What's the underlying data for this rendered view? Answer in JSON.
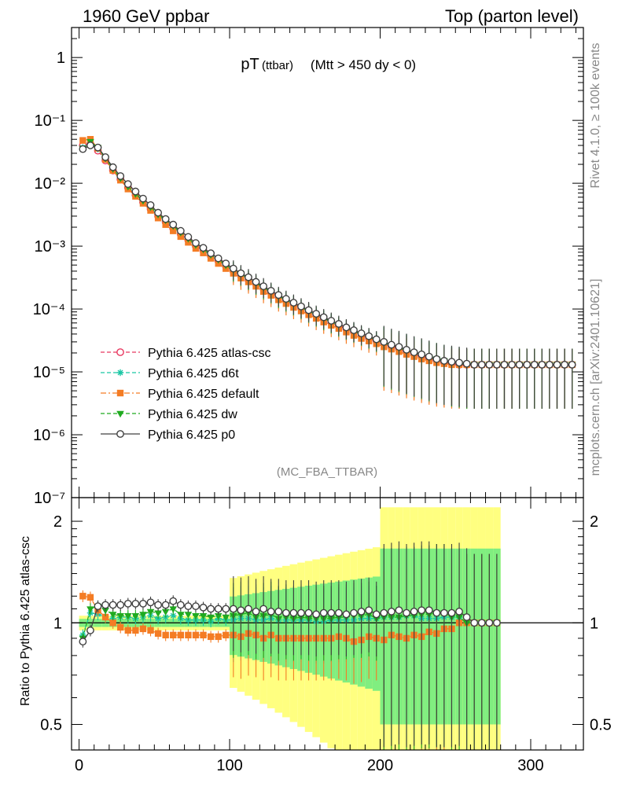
{
  "header": {
    "left_title": "1960 GeV ppbar",
    "right_title": "Top (parton level)"
  },
  "side_labels": {
    "rivet": "Rivet 4.1.0, ≥ 100k events",
    "mcplots": "mcplots.cern.ch [arXiv:2401.10621]"
  },
  "plot_title": {
    "main": "pT",
    "sub": "(ttbar)",
    "cut": "(Mtt > 450 dy < 0)"
  },
  "analysis_tag": "(MC_FBA_TTBAR)",
  "colors": {
    "atlas_csc": "#e8375f",
    "d6t": "#19c6a4",
    "default": "#f47c24",
    "dw": "#1faa1f",
    "p0": "#404040",
    "band_yellow": "#ffff80",
    "band_green": "#80ee80"
  },
  "chart_data": [
    {
      "type": "line",
      "panel": "main",
      "xlabel": "",
      "ylabel": "",
      "xlim": [
        -5,
        335
      ],
      "ylim": [
        1e-07,
        3
      ],
      "yscale": "log",
      "ytick_labels": [
        "10⁻⁷",
        "10⁻⁶",
        "10⁻⁵",
        "10⁻⁴",
        "10⁻³",
        "10⁻²",
        "10⁻¹",
        "1"
      ],
      "legend_position": "middle-left",
      "x": [
        2.5,
        7.5,
        12.5,
        17.5,
        22.5,
        27.5,
        32.5,
        37.5,
        42.5,
        47.5,
        52.5,
        57.5,
        62.5,
        67.5,
        72.5,
        77.5,
        82.5,
        87.5,
        92.5,
        97.5,
        102.5,
        107.5,
        112.5,
        117.5,
        122.5,
        127.5,
        132.5,
        137.5,
        142.5,
        147.5,
        152.5,
        157.5,
        162.5,
        167.5,
        172.5,
        177.5,
        182.5,
        187.5,
        192.5,
        197.5,
        202.5,
        207.5,
        212.5,
        217.5,
        222.5,
        227.5,
        232.5,
        237.5,
        242.5,
        247.5,
        252.5,
        257.5,
        262.5,
        267.5,
        272.5,
        277.5,
        282.5,
        287.5,
        292.5,
        297.5,
        302.5,
        307.5,
        312.5,
        317.5,
        322.5,
        327.5
      ],
      "series": [
        {
          "name": "Pythia 6.425 atlas-csc",
          "key": "atlas_csc",
          "style": "dashed",
          "marker": "open-circle",
          "values": [
            0.04,
            0.042,
            0.033,
            0.023,
            0.016,
            0.0115,
            0.0085,
            0.0065,
            0.005,
            0.0039,
            0.003,
            0.0024,
            0.0019,
            0.00155,
            0.00125,
            0.001,
            0.00085,
            0.0007,
            0.00058,
            0.00048,
            0.0004,
            0.00034,
            0.00029,
            0.00025,
            0.00021,
            0.00018,
            0.000155,
            0.000135,
            0.000118,
            0.000103,
            9e-05,
            7.9e-05,
            6.9e-05,
            6.1e-05,
            5.4e-05,
            4.8e-05,
            4.3e-05,
            3.8e-05,
            3.4e-05,
            3.1e-05,
            2.8e-05,
            2.5e-05,
            2.3e-05,
            2.1e-05,
            1.9e-05,
            1.75e-05,
            1.6e-05,
            1.5e-05,
            1.4e-05,
            1.35e-05,
            1.3e-05,
            1.3e-05,
            1.3e-05,
            1.3e-05,
            1.3e-05,
            1.3e-05,
            1.3e-05,
            1.3e-05,
            1.3e-05,
            1.3e-05,
            1.3e-05,
            1.3e-05,
            1.3e-05,
            1.3e-05,
            1.3e-05,
            1.3e-05
          ]
        },
        {
          "name": "Pythia 6.425 d6t",
          "key": "d6t",
          "style": "dashed",
          "marker": "star",
          "values": [
            0.037,
            0.045,
            0.035,
            0.024,
            0.0165,
            0.012,
            0.0088,
            0.0067,
            0.0052,
            0.0041,
            0.0031,
            0.0025,
            0.002,
            0.0016,
            0.00128,
            0.00102,
            0.00087,
            0.00071,
            0.0006,
            0.00049,
            0.00041,
            0.00035,
            0.0003,
            0.000255,
            0.000215,
            0.000185,
            0.000158,
            0.000138,
            0.00012,
            0.000105,
            9.2e-05,
            8e-05,
            7e-05,
            6.2e-05,
            5.5e-05,
            4.9e-05,
            4.4e-05,
            3.9e-05,
            3.5e-05,
            3.2e-05,
            2.9e-05,
            2.6e-05,
            2.4e-05,
            2.2e-05,
            2e-05,
            1.8e-05,
            1.65e-05,
            1.55e-05,
            1.45e-05,
            1.4e-05,
            1.35e-05,
            1.3e-05,
            1.3e-05,
            1.3e-05,
            1.3e-05,
            1.3e-05,
            1.3e-05,
            1.3e-05,
            1.3e-05,
            1.3e-05,
            1.3e-05,
            1.3e-05,
            1.3e-05,
            1.3e-05,
            1.3e-05,
            1.3e-05
          ]
        },
        {
          "name": "Pythia 6.425 default",
          "key": "default",
          "style": "dashdot",
          "marker": "square",
          "values": [
            0.048,
            0.05,
            0.036,
            0.024,
            0.016,
            0.0112,
            0.0081,
            0.0062,
            0.0048,
            0.0037,
            0.0028,
            0.0022,
            0.00175,
            0.00142,
            0.00115,
            0.00092,
            0.00078,
            0.00064,
            0.00053,
            0.00044,
            0.00037,
            0.00031,
            0.00027,
            0.00023,
            0.00019,
            0.000165,
            0.00014,
            0.000122,
            0.000106,
            9.3e-05,
            8.1e-05,
            7.1e-05,
            6.2e-05,
            5.5e-05,
            4.9e-05,
            4.3e-05,
            3.8e-05,
            3.4e-05,
            3.1e-05,
            2.8e-05,
            2.5e-05,
            2.3e-05,
            2.1e-05,
            1.9e-05,
            1.75e-05,
            1.6e-05,
            1.5e-05,
            1.4e-05,
            1.35e-05,
            1.3e-05,
            1.3e-05,
            1.3e-05,
            1.3e-05,
            1.3e-05,
            1.3e-05,
            1.3e-05,
            1.3e-05,
            1.3e-05,
            1.3e-05,
            1.3e-05,
            1.3e-05,
            1.3e-05,
            1.3e-05,
            1.3e-05,
            1.3e-05,
            1.3e-05
          ]
        },
        {
          "name": "Pythia 6.425 dw",
          "key": "dw",
          "style": "dashed",
          "marker": "triangle-down",
          "values": [
            0.036,
            0.046,
            0.037,
            0.025,
            0.017,
            0.0121,
            0.0089,
            0.0068,
            0.0053,
            0.0042,
            0.0032,
            0.0026,
            0.0021,
            0.00165,
            0.00132,
            0.00105,
            0.00089,
            0.00073,
            0.00061,
            0.0005,
            0.00042,
            0.00036,
            0.00031,
            0.00026,
            0.00022,
            0.00019,
            0.00016,
            0.00014,
            0.000122,
            0.000107,
            9.3e-05,
            8.1e-05,
            7.1e-05,
            6.3e-05,
            5.6e-05,
            5e-05,
            4.5e-05,
            4e-05,
            3.6e-05,
            3.2e-05,
            2.9e-05,
            2.6e-05,
            2.4e-05,
            2.2e-05,
            2e-05,
            1.85e-05,
            1.7e-05,
            1.6e-05,
            1.5e-05,
            1.4e-05,
            1.35e-05,
            1.3e-05,
            1.3e-05,
            1.3e-05,
            1.3e-05,
            1.3e-05,
            1.3e-05,
            1.3e-05,
            1.3e-05,
            1.3e-05,
            1.3e-05,
            1.3e-05,
            1.3e-05,
            1.3e-05,
            1.3e-05,
            1.3e-05
          ]
        },
        {
          "name": "Pythia 6.425 p0",
          "key": "p0",
          "style": "solid",
          "marker": "open-circle",
          "values": [
            0.035,
            0.04,
            0.037,
            0.026,
            0.018,
            0.013,
            0.0097,
            0.0074,
            0.0057,
            0.0045,
            0.0034,
            0.0027,
            0.0022,
            0.00175,
            0.0014,
            0.00112,
            0.00094,
            0.00077,
            0.00064,
            0.00053,
            0.00044,
            0.00037,
            0.00032,
            0.00027,
            0.00023,
            0.000195,
            0.000167,
            0.000145,
            0.000126,
            0.00011,
            9.6e-05,
            8.4e-05,
            7.4e-05,
            6.5e-05,
            5.8e-05,
            5.1e-05,
            4.6e-05,
            4.1e-05,
            3.7e-05,
            3.3e-05,
            3e-05,
            2.7e-05,
            2.5e-05,
            2.25e-05,
            2.05e-05,
            1.9e-05,
            1.75e-05,
            1.6e-05,
            1.5e-05,
            1.45e-05,
            1.4e-05,
            1.35e-05,
            1.3e-05,
            1.3e-05,
            1.3e-05,
            1.3e-05,
            1.3e-05,
            1.3e-05,
            1.3e-05,
            1.3e-05,
            1.3e-05,
            1.3e-05,
            1.3e-05,
            1.3e-05,
            1.3e-05,
            1.3e-05
          ]
        }
      ]
    },
    {
      "type": "line",
      "panel": "ratio",
      "xlabel": "",
      "ylabel": "Ratio to Pythia 6.425 atlas-csc",
      "xlim": [
        -5,
        335
      ],
      "ylim": [
        0.42,
        2.35
      ],
      "yscale": "log",
      "yticks": [
        0.5,
        1,
        2
      ],
      "ytick_labels": [
        "0.5",
        "1",
        "2"
      ],
      "xticks": [
        0,
        100,
        200,
        300
      ],
      "xtick_labels": [
        "0",
        "100",
        "200",
        "300"
      ],
      "reference": 1,
      "x": [
        2.5,
        7.5,
        12.5,
        17.5,
        22.5,
        27.5,
        32.5,
        37.5,
        42.5,
        47.5,
        52.5,
        57.5,
        62.5,
        67.5,
        72.5,
        77.5,
        82.5,
        87.5,
        92.5,
        97.5,
        102.5,
        107.5,
        112.5,
        117.5,
        122.5,
        127.5,
        132.5,
        137.5,
        142.5,
        147.5,
        152.5,
        157.5,
        162.5,
        167.5,
        172.5,
        177.5,
        182.5,
        187.5,
        192.5,
        197.5,
        202.5,
        207.5,
        212.5,
        217.5,
        222.5,
        227.5,
        232.5,
        237.5,
        242.5,
        247.5,
        252.5,
        257.5,
        262.5,
        267.5,
        272.5,
        277.5
      ],
      "series": [
        {
          "name": "Pythia 6.425 d6t",
          "key": "d6t",
          "style": "dashed",
          "marker": "star",
          "values": [
            0.92,
            1.07,
            1.06,
            1.04,
            1.03,
            1.04,
            1.04,
            1.03,
            1.04,
            1.05,
            1.03,
            1.04,
            1.05,
            1.03,
            1.02,
            1.02,
            1.02,
            1.01,
            1.03,
            1.02,
            1.02,
            1.03,
            1.03,
            1.02,
            1.02,
            1.03,
            1.02,
            1.02,
            1.02,
            1.02,
            1.02,
            1.01,
            1.01,
            1.02,
            1.02,
            1.02,
            1.02,
            1.03,
            1.03,
            1.03,
            1.04,
            1.04,
            1.04,
            1.05,
            1.05,
            1.03,
            1.03,
            1.03,
            1.04,
            1.04,
            1.04,
            1,
            1,
            1,
            1,
            1
          ]
        },
        {
          "name": "Pythia 6.425 default",
          "key": "default",
          "style": "dashdot",
          "marker": "square",
          "values": [
            1.2,
            1.19,
            1.09,
            1.04,
            1.0,
            0.97,
            0.95,
            0.95,
            0.96,
            0.95,
            0.93,
            0.92,
            0.92,
            0.92,
            0.92,
            0.92,
            0.92,
            0.91,
            0.91,
            0.92,
            0.92,
            0.91,
            0.93,
            0.92,
            0.9,
            0.92,
            0.9,
            0.9,
            0.9,
            0.9,
            0.9,
            0.9,
            0.9,
            0.9,
            0.91,
            0.9,
            0.88,
            0.89,
            0.91,
            0.9,
            0.89,
            0.92,
            0.91,
            0.9,
            0.92,
            0.91,
            0.94,
            0.93,
            0.96,
            0.96,
            1.0,
            1.0,
            1.0,
            1.0,
            1.0,
            1.0
          ]
        },
        {
          "name": "Pythia 6.425 dw",
          "key": "dw",
          "style": "dashed",
          "marker": "triangle-down",
          "values": [
            0.9,
            1.1,
            1.12,
            1.09,
            1.06,
            1.05,
            1.05,
            1.05,
            1.06,
            1.08,
            1.07,
            1.08,
            1.1,
            1.06,
            1.06,
            1.05,
            1.05,
            1.04,
            1.05,
            1.04,
            1.05,
            1.06,
            1.07,
            1.04,
            1.05,
            1.06,
            1.03,
            1.04,
            1.03,
            1.04,
            1.03,
            1.03,
            1.03,
            1.03,
            1.04,
            1.04,
            1.05,
            1.05,
            1.06,
            1.03,
            1.04,
            1.04,
            1.04,
            1.05,
            1.05,
            1.06,
            1.06,
            1.07,
            1.07,
            1.04,
            1.04,
            1,
            1,
            1,
            1,
            1
          ]
        },
        {
          "name": "Pythia 6.425 p0",
          "key": "p0",
          "style": "solid",
          "marker": "open-circle",
          "values": [
            0.88,
            0.95,
            1.12,
            1.13,
            1.13,
            1.13,
            1.14,
            1.14,
            1.14,
            1.15,
            1.13,
            1.13,
            1.16,
            1.13,
            1.12,
            1.12,
            1.11,
            1.1,
            1.1,
            1.1,
            1.1,
            1.09,
            1.1,
            1.08,
            1.1,
            1.08,
            1.08,
            1.07,
            1.07,
            1.07,
            1.07,
            1.06,
            1.07,
            1.07,
            1.07,
            1.06,
            1.07,
            1.08,
            1.09,
            1.06,
            1.07,
            1.08,
            1.09,
            1.07,
            1.08,
            1.09,
            1.09,
            1.07,
            1.07,
            1.07,
            1.08,
            1.04,
            1.0,
            1.0,
            1.0,
            1.0
          ]
        }
      ]
    }
  ]
}
